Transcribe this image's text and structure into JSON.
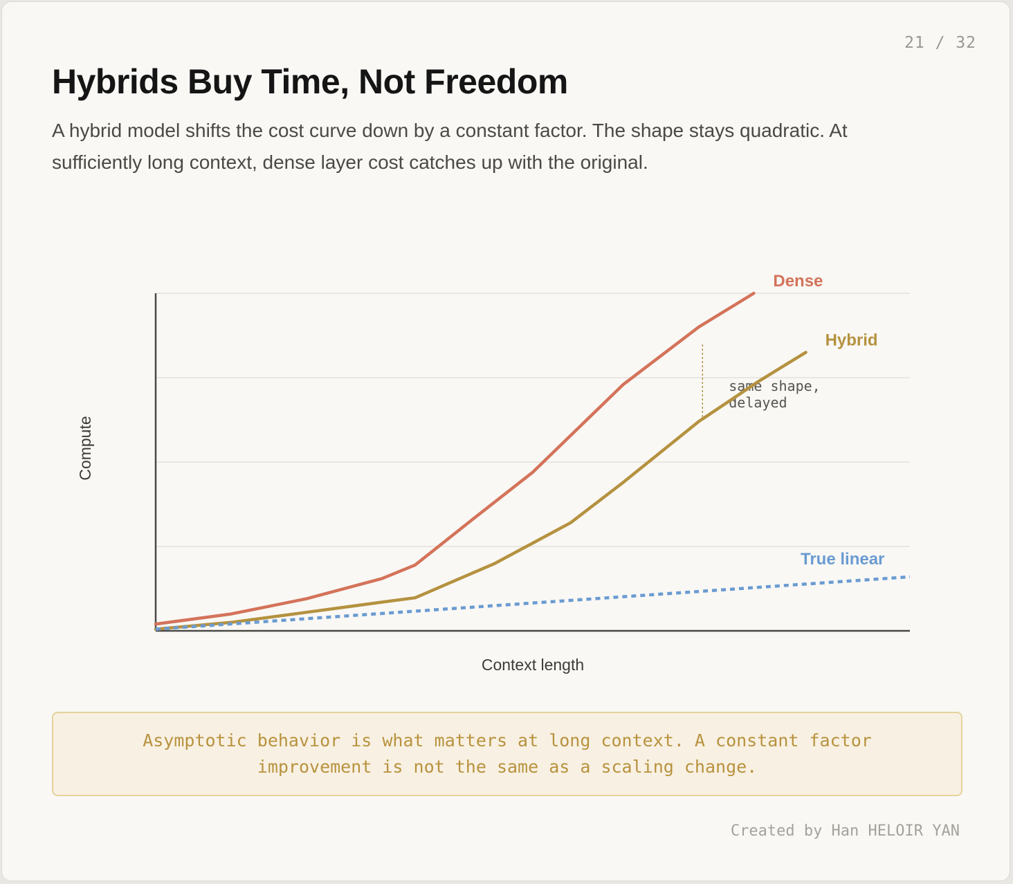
{
  "page_number": "21 / 32",
  "title": "Hybrids Buy Time, Not Freedom",
  "subtitle": "A hybrid model shifts the cost curve down by a constant factor. The shape stays quadratic. At sufficiently long context, dense layer cost catches up with the original.",
  "chart_data": {
    "type": "line",
    "xlabel": "Context length",
    "ylabel": "Compute",
    "xlim": [
      0,
      100
    ],
    "ylim": [
      0,
      100
    ],
    "grid": true,
    "series": [
      {
        "name": "Dense",
        "color": "#d4735a",
        "style": "solid",
        "x": [
          0,
          10,
          20,
          30,
          34.4,
          42,
          50,
          62,
          72,
          79.3
        ],
        "y": [
          2,
          5,
          9.5,
          15.5,
          19.5,
          33,
          47,
          73,
          90,
          100
        ]
      },
      {
        "name": "Hybrid",
        "color": "#b59240",
        "style": "solid",
        "x": [
          0,
          10,
          20,
          30,
          34.4,
          45,
          55,
          62,
          72,
          80,
          86.2
        ],
        "y": [
          0.5,
          2.5,
          5.5,
          8.5,
          9.8,
          20,
          32,
          44,
          62,
          74,
          82.5
        ]
      },
      {
        "name": "True linear",
        "color": "#6a9bd1",
        "style": "dotted",
        "x": [
          0,
          100
        ],
        "y": [
          0.5,
          16
        ]
      }
    ],
    "annotations": [
      {
        "text": "same shape,\ndelayed",
        "x": 72.5
      }
    ]
  },
  "callout": "Asymptotic behavior is what matters at long context. A constant factor improvement is not the same as a scaling change.",
  "credit": "Created by Han HELOIR YAN"
}
